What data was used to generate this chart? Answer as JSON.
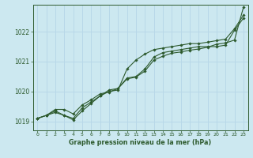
{
  "title": "Graphe pression niveau de la mer (hPa)",
  "bg_color": "#cce8f0",
  "grid_color": "#b8d8e8",
  "line_color": "#2d5a2d",
  "marker_color": "#2d5a2d",
  "xlim": [
    -0.5,
    23.5
  ],
  "ylim": [
    1018.7,
    1022.9
  ],
  "xticks": [
    0,
    1,
    2,
    3,
    4,
    5,
    6,
    7,
    8,
    9,
    10,
    11,
    12,
    13,
    14,
    15,
    16,
    17,
    18,
    19,
    20,
    21,
    22,
    23
  ],
  "yticks": [
    1019,
    1020,
    1021,
    1022
  ],
  "series": [
    [
      1019.1,
      1019.2,
      1019.35,
      1019.2,
      1019.1,
      1019.45,
      1019.65,
      1019.85,
      1020.0,
      1020.05,
      1020.75,
      1021.05,
      1021.25,
      1021.4,
      1021.45,
      1021.5,
      1021.55,
      1021.6,
      1021.6,
      1021.65,
      1021.7,
      1021.75,
      1022.1,
      1022.55
    ],
    [
      1019.1,
      1019.2,
      1019.3,
      1019.2,
      1019.05,
      1019.35,
      1019.6,
      1019.85,
      1020.05,
      1020.1,
      1020.45,
      1020.5,
      1020.75,
      1021.15,
      1021.3,
      1021.35,
      1021.4,
      1021.45,
      1021.5,
      1021.5,
      1021.5,
      1021.55,
      1022.05,
      1022.45
    ],
    [
      1019.1,
      1019.2,
      1019.4,
      1019.4,
      1019.25,
      1019.55,
      1019.72,
      1019.92,
      1019.98,
      1020.1,
      1020.42,
      1020.48,
      1020.68,
      1021.05,
      1021.18,
      1021.28,
      1021.32,
      1021.38,
      1021.42,
      1021.48,
      1021.58,
      1021.62,
      1021.72,
      1022.82
    ]
  ]
}
